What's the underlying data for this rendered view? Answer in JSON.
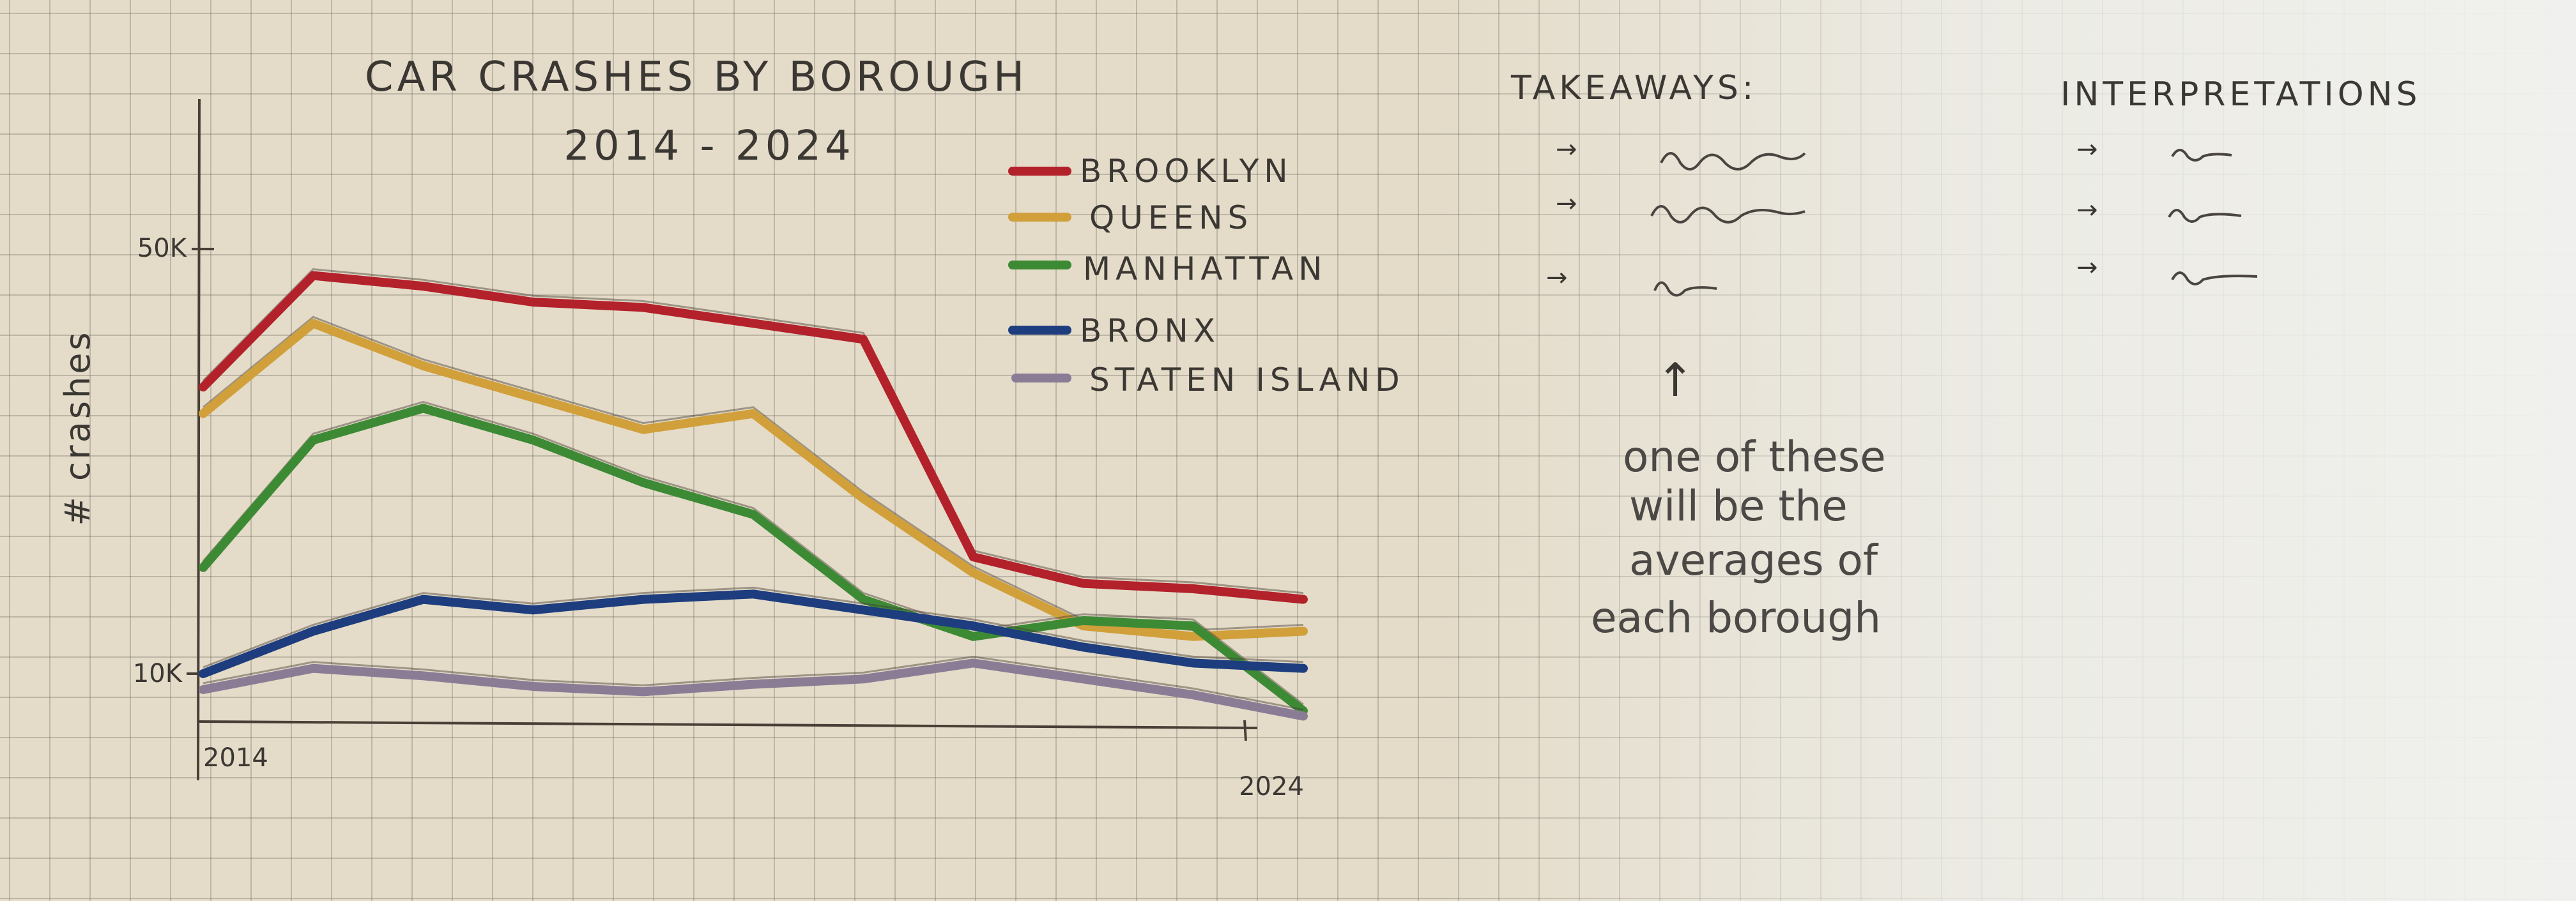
{
  "chart_data": {
    "type": "line",
    "title": "CAR CRASHES BY BOROUGH",
    "subtitle": "2014 - 2024",
    "ylabel": "# crashes",
    "xlabel": "",
    "x_tick_labels": [
      "2014",
      "2024"
    ],
    "y_tick_labels": [
      "10K",
      "50K"
    ],
    "x": [
      2014,
      2015,
      2016,
      2017,
      2018,
      2019,
      2020,
      2021,
      2022,
      2023,
      2024
    ],
    "xlim": [
      2014,
      2024
    ],
    "ylim": [
      5000,
      60000
    ],
    "grid": true,
    "legend_placement": "top-right",
    "series": [
      {
        "name": "BROOKLYN",
        "color": "#b3212b",
        "values": [
          37000,
          47500,
          46500,
          45000,
          44500,
          43000,
          41500,
          21000,
          18500,
          18000,
          17000
        ]
      },
      {
        "name": "QUEENS",
        "color": "#d1a03a",
        "values": [
          34500,
          43000,
          39000,
          36000,
          33000,
          34500,
          26500,
          19500,
          14500,
          13500,
          14000
        ]
      },
      {
        "name": "MANHATTAN",
        "color": "#3d8a35",
        "values": [
          20000,
          32000,
          35000,
          32000,
          28000,
          25000,
          17000,
          13500,
          15000,
          14500,
          6500
        ]
      },
      {
        "name": "BRONX",
        "color": "#1d3d7e",
        "values": [
          10000,
          14000,
          17000,
          16000,
          17000,
          17500,
          16000,
          14500,
          12500,
          11000,
          10500
        ]
      },
      {
        "name": "STATEN ISLAND",
        "color": "#8b7c96",
        "values": [
          8500,
          10500,
          9800,
          8800,
          8300,
          9000,
          9500,
          11000,
          9500,
          8000,
          6000
        ]
      }
    ]
  },
  "notes": {
    "takeaways_heading": "TAKEAWAYS:",
    "interpretations_heading": "INTERPRETATIONS",
    "arrow_glyph": "→",
    "up_arrow_glyph": "↑",
    "annotation_lines": [
      "one of these",
      "will be the",
      "averages of",
      "each borough"
    ]
  }
}
